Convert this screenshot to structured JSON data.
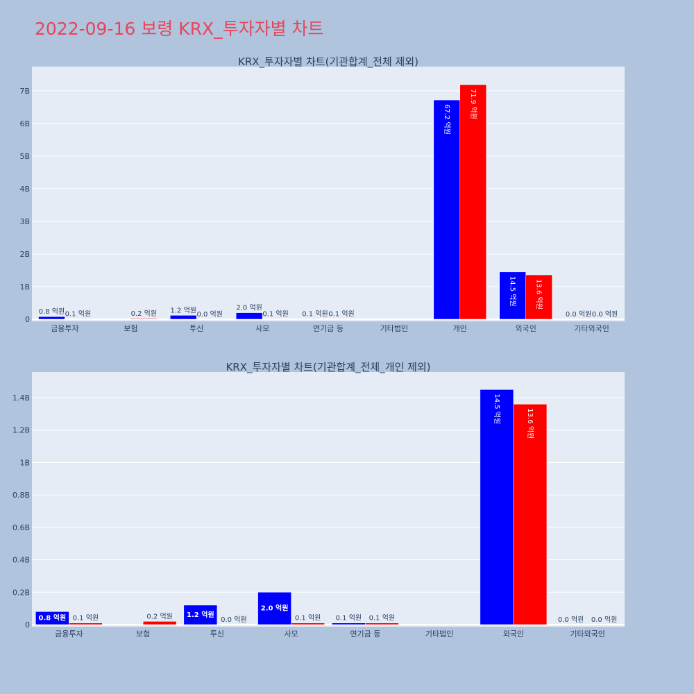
{
  "title": "2022-09-16 보령 KRX_투자자별 차트",
  "colors": {
    "background": "#b0c4de",
    "plot_bg": "#e5ecf6",
    "title": "#e8455a",
    "series_a": "#0000ff",
    "series_b": "#ff0000"
  },
  "chart_data": [
    {
      "type": "bar",
      "title": "KRX_투자자별 차트(기관합계_전체 제외)",
      "categories": [
        "금융투자",
        "보험",
        "투신",
        "사모",
        "연기금 등",
        "기타법인",
        "개인",
        "외국인",
        "기타외국인"
      ],
      "ylim": [
        0,
        7.7
      ],
      "yticks": [
        0,
        1,
        2,
        3,
        4,
        5,
        6,
        7
      ],
      "ytick_labels": [
        "0",
        "1B",
        "2B",
        "3B",
        "4B",
        "5B",
        "6B",
        "7B"
      ],
      "grid": true,
      "series": [
        {
          "color": "#0000ff",
          "values": [
            0.08,
            0.0,
            0.12,
            0.2,
            0.01,
            null,
            6.72,
            1.45,
            0.0
          ],
          "labels": [
            "0.8 억원",
            "",
            "1.2 억원",
            "2.0 억원",
            "0.1 억원",
            "",
            "67.2 억원",
            "14.5 억원",
            "0.0 억원"
          ]
        },
        {
          "color": "#ff0000",
          "values": [
            0.01,
            0.02,
            0.0,
            0.01,
            0.01,
            null,
            7.19,
            1.36,
            0.0
          ],
          "labels": [
            "0.1 억원",
            "0.2 억원",
            "0.0 억원",
            "0.1 억원",
            "0.1 억원",
            "",
            "71.9 억원",
            "13.6 억원",
            "0.0 억원"
          ]
        }
      ]
    },
    {
      "type": "bar",
      "title": "KRX_투자자별 차트(기관합계_전체_개인 제외)",
      "categories": [
        "금융투자",
        "보험",
        "투신",
        "사모",
        "연기금 등",
        "기타법인",
        "외국인",
        "기타외국인"
      ],
      "ylim": [
        0,
        1.55
      ],
      "yticks": [
        0,
        0.2,
        0.4,
        0.6,
        0.8,
        1.0,
        1.2,
        1.4
      ],
      "ytick_labels": [
        "0",
        "0.2B",
        "0.4B",
        "0.6B",
        "0.8B",
        "1B",
        "1.2B",
        "1.4B"
      ],
      "grid": true,
      "series": [
        {
          "color": "#0000ff",
          "values": [
            0.08,
            0.0,
            0.12,
            0.2,
            0.01,
            null,
            1.45,
            0.0
          ],
          "labels": [
            "0.8 억원",
            "",
            "1.2 억원",
            "2.0 억원",
            "0.1 억원",
            "",
            "14.5 억원",
            "0.0 억원"
          ]
        },
        {
          "color": "#ff0000",
          "values": [
            0.01,
            0.02,
            0.0,
            0.01,
            0.01,
            null,
            1.36,
            0.0
          ],
          "labels": [
            "0.1 억원",
            "0.2 억원",
            "0.0 억원",
            "0.1 억원",
            "0.1 억원",
            "",
            "13.6 억원",
            "0.0 억원"
          ]
        }
      ]
    }
  ]
}
